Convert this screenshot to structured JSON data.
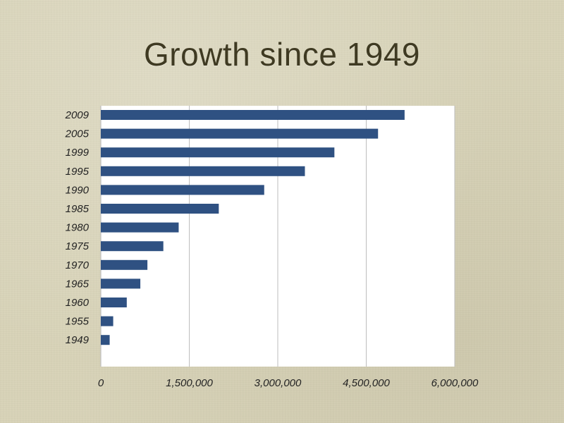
{
  "chart_data": {
    "type": "bar",
    "orientation": "horizontal",
    "title": "Growth since 1949",
    "categories": [
      "2009",
      "2005",
      "1999",
      "1995",
      "1990",
      "1985",
      "1980",
      "1975",
      "1970",
      "1965",
      "1960",
      "1955",
      "1949"
    ],
    "values": [
      5150000,
      4700000,
      3960000,
      3460000,
      2770000,
      2000000,
      1320000,
      1060000,
      790000,
      670000,
      440000,
      210000,
      150000
    ],
    "xlim": [
      0,
      6000000
    ],
    "xticks": [
      "0",
      "1,500,000",
      "3,000,000",
      "4,500,000",
      "6,000,000"
    ],
    "xtick_values": [
      0,
      1500000,
      3000000,
      4500000,
      6000000
    ],
    "xlabel": "",
    "ylabel": "",
    "grid": true,
    "legend": "none",
    "bar_color": "#2f5182",
    "plot_background": "#ffffff",
    "grid_color": "#bdbdbd"
  }
}
